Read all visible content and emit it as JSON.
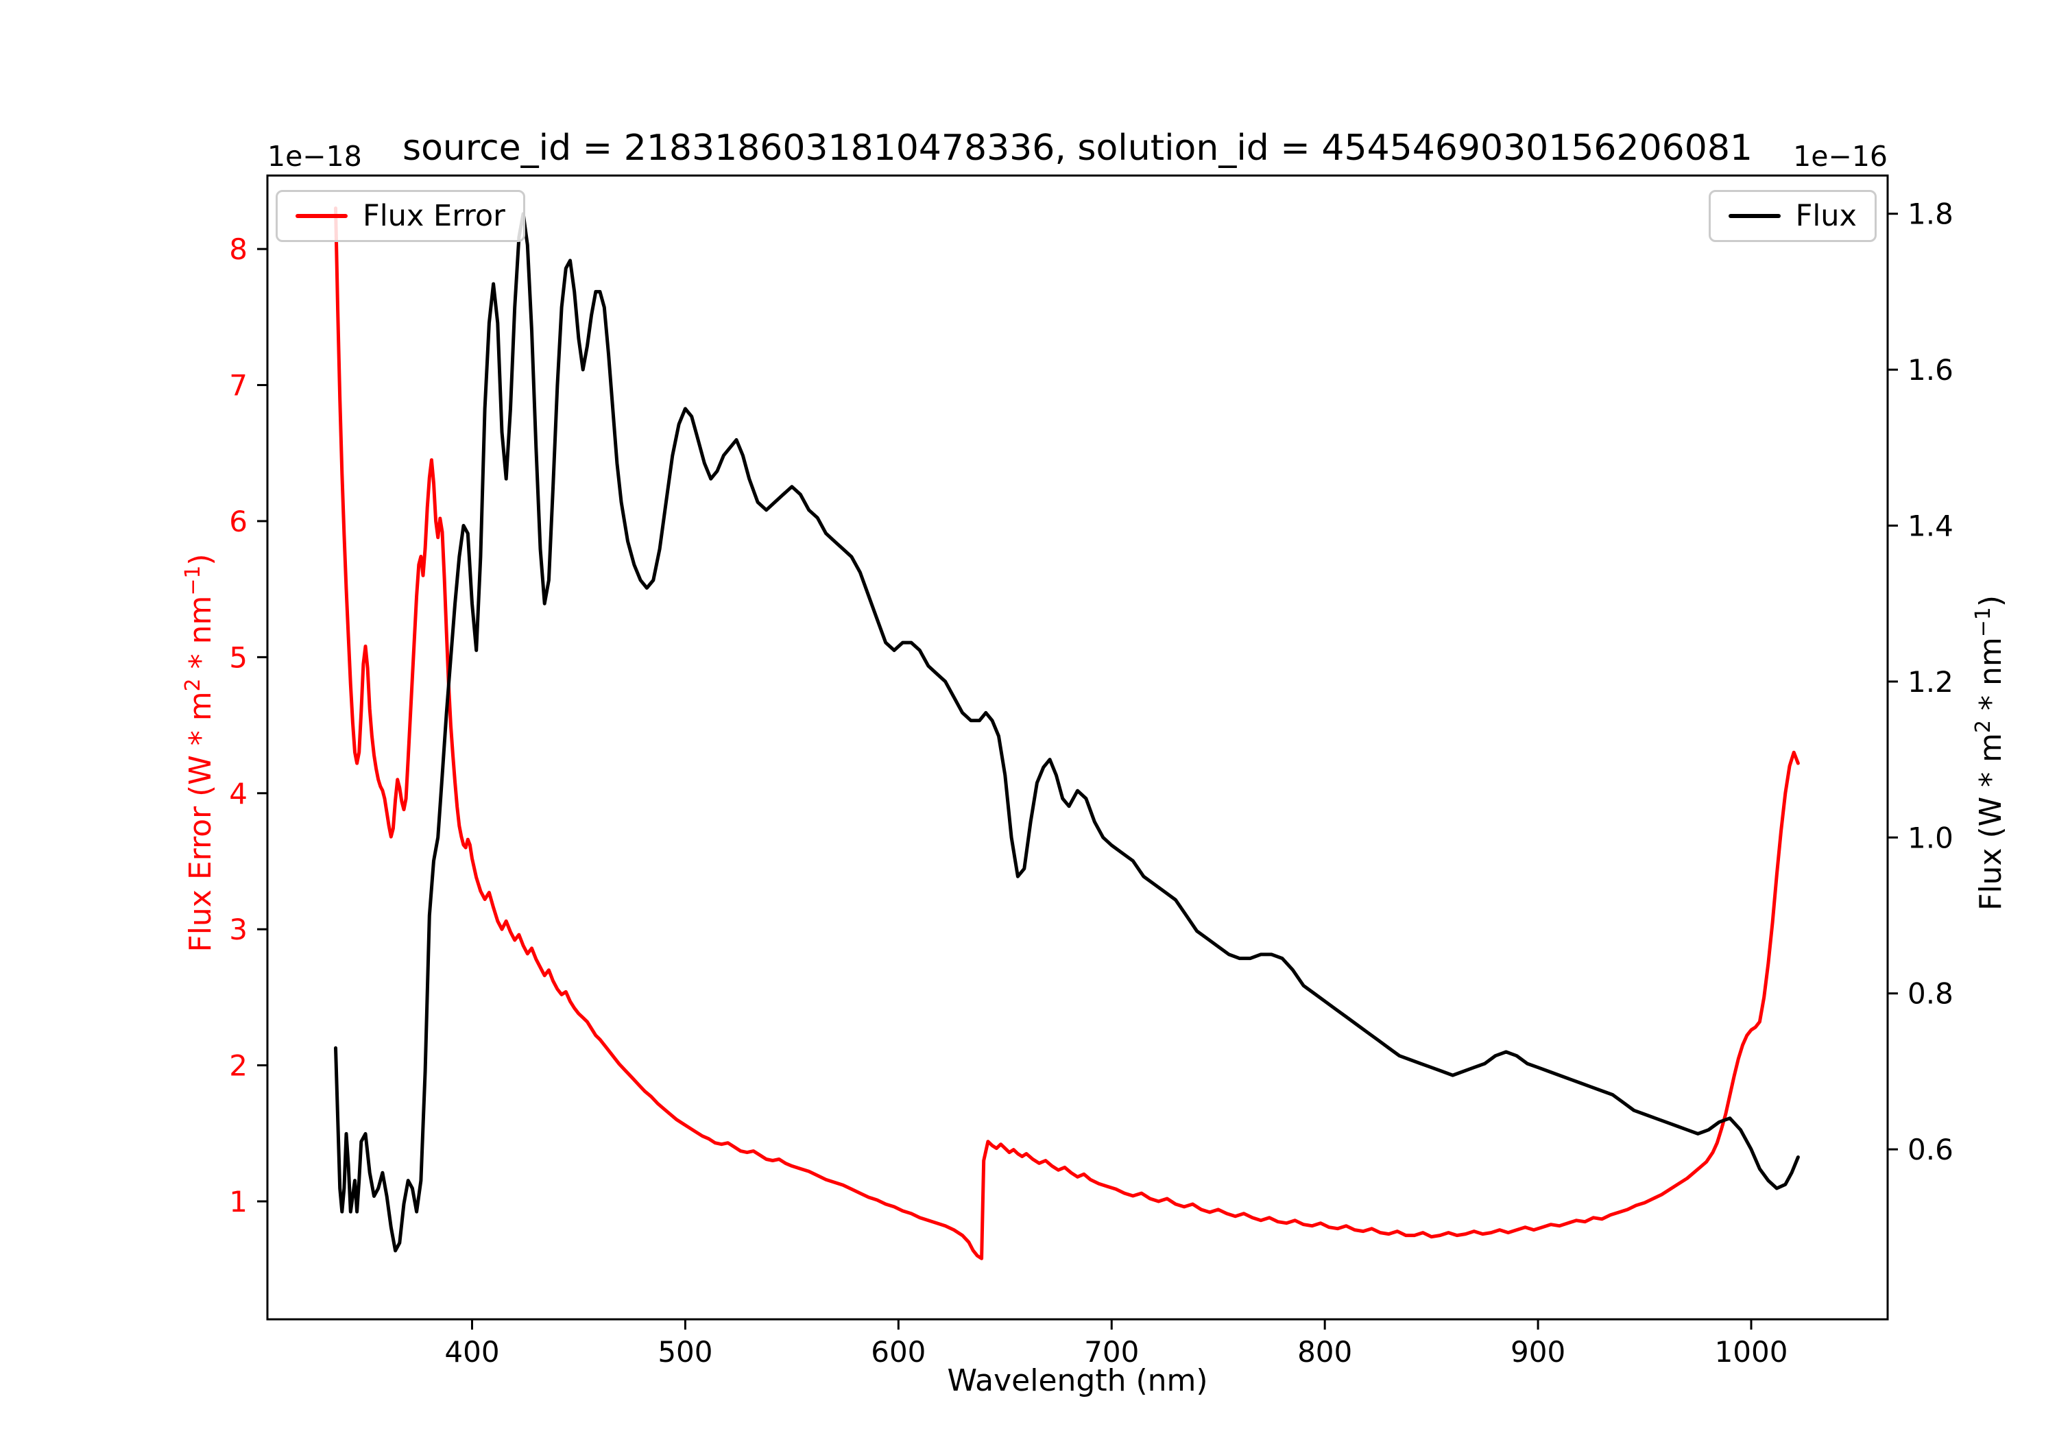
{
  "chart_data": {
    "type": "line",
    "title": "source_id = 2183186031810478336, solution_id = 4545469030156206081",
    "xlabel": "Wavelength (nm)",
    "left_offset_label": "1e−18",
    "right_offset_label": "1e−16",
    "grid": false,
    "x_range": [
      304,
      1064
    ],
    "y_left_range": [
      0.133,
      8.54
    ],
    "y_right_range": [
      0.382,
      1.849
    ],
    "x_tick_values": [
      400,
      500,
      600,
      700,
      800,
      900,
      1000
    ],
    "x_tick_labels": [
      "400",
      "500",
      "600",
      "700",
      "800",
      "900",
      "1000"
    ],
    "y_left_tick_values": [
      1,
      2,
      3,
      4,
      5,
      6,
      7,
      8
    ],
    "y_left_tick_labels": [
      "1",
      "2",
      "3",
      "4",
      "5",
      "6",
      "7",
      "8"
    ],
    "y_right_tick_values": [
      0.6,
      0.8,
      1.0,
      1.2,
      1.4,
      1.6,
      1.8
    ],
    "y_right_tick_labels": [
      "0.6",
      "0.8",
      "1.0",
      "1.2",
      "1.4",
      "1.6",
      "1.8"
    ],
    "axis_color": "#000000",
    "left_tick_label_color": "#ff0000",
    "right_tick_label_color": "#000000",
    "series": [
      {
        "name": "Flux Error",
        "axis": "left",
        "color": "#ff0000",
        "units_scale": "1e-18",
        "x": [
          336,
          337,
          338,
          339,
          340,
          341,
          342,
          343,
          344,
          345,
          346,
          347,
          348,
          349,
          350,
          351,
          352,
          353,
          354,
          355,
          356,
          357,
          358,
          359,
          360,
          361,
          362,
          363,
          364,
          365,
          366,
          367,
          368,
          369,
          370,
          371,
          372,
          373,
          374,
          375,
          376,
          377,
          378,
          379,
          380,
          381,
          382,
          383,
          384,
          385,
          386,
          387,
          388,
          389,
          390,
          391,
          392,
          393,
          394,
          395,
          396,
          397,
          398,
          399,
          400,
          402,
          404,
          406,
          408,
          410,
          412,
          414,
          416,
          418,
          420,
          422,
          424,
          426,
          428,
          430,
          432,
          434,
          436,
          438,
          440,
          442,
          444,
          446,
          448,
          450,
          452,
          454,
          456,
          458,
          460,
          463,
          466,
          469,
          472,
          475,
          478,
          481,
          484,
          487,
          490,
          493,
          496,
          499,
          502,
          505,
          508,
          511,
          514,
          517,
          520,
          523,
          526,
          529,
          532,
          535,
          538,
          541,
          544,
          547,
          550,
          554,
          558,
          562,
          566,
          570,
          574,
          578,
          582,
          586,
          590,
          594,
          598,
          602,
          606,
          610,
          614,
          618,
          622,
          626,
          630,
          633,
          635,
          637,
          639,
          640,
          642,
          644,
          646,
          648,
          650,
          652,
          654,
          656,
          658,
          660,
          663,
          666,
          669,
          672,
          675,
          678,
          681,
          684,
          687,
          690,
          694,
          698,
          702,
          706,
          710,
          714,
          718,
          722,
          726,
          730,
          734,
          738,
          742,
          746,
          750,
          754,
          758,
          762,
          766,
          770,
          774,
          778,
          782,
          786,
          790,
          794,
          798,
          802,
          806,
          810,
          814,
          818,
          822,
          826,
          830,
          834,
          838,
          842,
          846,
          850,
          854,
          858,
          862,
          866,
          870,
          874,
          878,
          882,
          886,
          890,
          894,
          898,
          902,
          906,
          910,
          914,
          918,
          922,
          926,
          930,
          934,
          938,
          942,
          946,
          950,
          954,
          958,
          962,
          966,
          970,
          973,
          976,
          979,
          982,
          984,
          986,
          988,
          990,
          992,
          994,
          996,
          998,
          1000,
          1002,
          1004,
          1006,
          1008,
          1010,
          1012,
          1014,
          1016,
          1018,
          1020,
          1022
        ],
        "y": [
          8.3,
          7.55,
          6.9,
          6.35,
          5.9,
          5.5,
          5.15,
          4.8,
          4.52,
          4.3,
          4.22,
          4.3,
          4.6,
          4.95,
          5.08,
          4.92,
          4.62,
          4.42,
          4.28,
          4.18,
          4.1,
          4.05,
          4.02,
          3.96,
          3.86,
          3.76,
          3.68,
          3.74,
          3.95,
          4.1,
          4.04,
          3.94,
          3.88,
          3.96,
          4.25,
          4.55,
          4.85,
          5.15,
          5.45,
          5.68,
          5.74,
          5.6,
          5.8,
          6.1,
          6.32,
          6.45,
          6.28,
          6.0,
          5.88,
          6.02,
          5.92,
          5.58,
          5.18,
          4.8,
          4.5,
          4.28,
          4.08,
          3.9,
          3.76,
          3.68,
          3.62,
          3.6,
          3.66,
          3.62,
          3.52,
          3.38,
          3.28,
          3.22,
          3.27,
          3.16,
          3.06,
          3.0,
          3.06,
          2.98,
          2.92,
          2.96,
          2.88,
          2.82,
          2.86,
          2.78,
          2.72,
          2.66,
          2.7,
          2.62,
          2.56,
          2.52,
          2.54,
          2.47,
          2.42,
          2.38,
          2.35,
          2.32,
          2.27,
          2.22,
          2.19,
          2.13,
          2.07,
          2.01,
          1.96,
          1.91,
          1.86,
          1.81,
          1.77,
          1.72,
          1.68,
          1.64,
          1.6,
          1.57,
          1.54,
          1.51,
          1.48,
          1.46,
          1.43,
          1.42,
          1.43,
          1.4,
          1.37,
          1.36,
          1.37,
          1.34,
          1.31,
          1.3,
          1.31,
          1.28,
          1.26,
          1.24,
          1.22,
          1.19,
          1.16,
          1.14,
          1.12,
          1.09,
          1.06,
          1.03,
          1.01,
          0.98,
          0.96,
          0.93,
          0.91,
          0.88,
          0.86,
          0.84,
          0.82,
          0.79,
          0.75,
          0.7,
          0.64,
          0.6,
          0.58,
          1.3,
          1.44,
          1.41,
          1.39,
          1.42,
          1.39,
          1.36,
          1.38,
          1.35,
          1.33,
          1.35,
          1.31,
          1.28,
          1.3,
          1.26,
          1.23,
          1.25,
          1.21,
          1.18,
          1.2,
          1.16,
          1.13,
          1.11,
          1.09,
          1.06,
          1.04,
          1.06,
          1.02,
          1.0,
          1.02,
          0.98,
          0.96,
          0.98,
          0.94,
          0.92,
          0.94,
          0.91,
          0.89,
          0.91,
          0.88,
          0.86,
          0.88,
          0.85,
          0.84,
          0.86,
          0.83,
          0.82,
          0.84,
          0.81,
          0.8,
          0.82,
          0.79,
          0.78,
          0.8,
          0.77,
          0.76,
          0.78,
          0.75,
          0.75,
          0.77,
          0.74,
          0.75,
          0.77,
          0.75,
          0.76,
          0.78,
          0.76,
          0.77,
          0.79,
          0.77,
          0.79,
          0.81,
          0.79,
          0.81,
          0.83,
          0.82,
          0.84,
          0.86,
          0.85,
          0.88,
          0.87,
          0.9,
          0.92,
          0.94,
          0.97,
          0.99,
          1.02,
          1.05,
          1.09,
          1.13,
          1.17,
          1.21,
          1.25,
          1.29,
          1.36,
          1.43,
          1.53,
          1.64,
          1.78,
          1.92,
          2.05,
          2.15,
          2.22,
          2.26,
          2.28,
          2.32,
          2.5,
          2.75,
          3.05,
          3.4,
          3.72,
          4.0,
          4.2,
          4.3,
          4.22
        ]
      },
      {
        "name": "Flux",
        "axis": "right",
        "color": "#000000",
        "units_scale": "1e-16",
        "x": [
          336,
          337,
          338,
          339,
          340,
          341,
          342,
          343,
          344,
          345,
          346,
          347,
          348,
          350,
          352,
          354,
          356,
          358,
          360,
          362,
          364,
          366,
          368,
          370,
          372,
          374,
          376,
          378,
          380,
          382,
          384,
          386,
          388,
          390,
          392,
          394,
          396,
          398,
          400,
          402,
          404,
          406,
          408,
          410,
          412,
          414,
          416,
          418,
          420,
          422,
          424,
          426,
          428,
          430,
          432,
          434,
          436,
          438,
          440,
          442,
          444,
          446,
          448,
          450,
          452,
          454,
          456,
          458,
          460,
          462,
          464,
          466,
          468,
          470,
          473,
          476,
          479,
          482,
          485,
          488,
          491,
          494,
          497,
          500,
          503,
          506,
          509,
          512,
          515,
          518,
          521,
          524,
          527,
          530,
          534,
          538,
          542,
          546,
          550,
          554,
          558,
          562,
          566,
          570,
          574,
          578,
          582,
          586,
          590,
          594,
          598,
          602,
          606,
          610,
          614,
          618,
          622,
          626,
          630,
          634,
          638,
          641,
          644,
          647,
          650,
          653,
          656,
          659,
          662,
          665,
          668,
          671,
          674,
          677,
          680,
          684,
          688,
          692,
          696,
          700,
          705,
          710,
          715,
          720,
          725,
          730,
          735,
          740,
          745,
          750,
          755,
          760,
          765,
          770,
          775,
          780,
          785,
          790,
          795,
          800,
          805,
          810,
          815,
          820,
          825,
          830,
          835,
          840,
          845,
          850,
          855,
          860,
          865,
          870,
          875,
          880,
          885,
          890,
          895,
          900,
          905,
          910,
          915,
          920,
          925,
          930,
          935,
          940,
          945,
          950,
          955,
          960,
          965,
          970,
          975,
          980,
          985,
          990,
          995,
          1000,
          1004,
          1008,
          1012,
          1016,
          1019,
          1022
        ],
        "y": [
          0.73,
          0.64,
          0.55,
          0.52,
          0.55,
          0.62,
          0.58,
          0.52,
          0.54,
          0.56,
          0.52,
          0.56,
          0.61,
          0.62,
          0.57,
          0.54,
          0.55,
          0.57,
          0.54,
          0.5,
          0.47,
          0.48,
          0.53,
          0.56,
          0.55,
          0.52,
          0.56,
          0.7,
          0.9,
          0.97,
          1.0,
          1.08,
          1.16,
          1.23,
          1.3,
          1.36,
          1.4,
          1.39,
          1.3,
          1.24,
          1.36,
          1.55,
          1.66,
          1.71,
          1.66,
          1.52,
          1.46,
          1.55,
          1.68,
          1.77,
          1.8,
          1.76,
          1.65,
          1.5,
          1.37,
          1.3,
          1.33,
          1.45,
          1.58,
          1.68,
          1.73,
          1.74,
          1.7,
          1.64,
          1.6,
          1.63,
          1.67,
          1.7,
          1.7,
          1.68,
          1.62,
          1.55,
          1.48,
          1.43,
          1.38,
          1.35,
          1.33,
          1.32,
          1.33,
          1.37,
          1.43,
          1.49,
          1.53,
          1.55,
          1.54,
          1.51,
          1.48,
          1.46,
          1.47,
          1.49,
          1.5,
          1.51,
          1.49,
          1.46,
          1.43,
          1.42,
          1.43,
          1.44,
          1.45,
          1.44,
          1.42,
          1.41,
          1.39,
          1.38,
          1.37,
          1.36,
          1.34,
          1.31,
          1.28,
          1.25,
          1.24,
          1.25,
          1.25,
          1.24,
          1.22,
          1.21,
          1.2,
          1.18,
          1.16,
          1.15,
          1.15,
          1.16,
          1.15,
          1.13,
          1.08,
          1.0,
          0.95,
          0.96,
          1.02,
          1.07,
          1.09,
          1.1,
          1.08,
          1.05,
          1.04,
          1.06,
          1.05,
          1.02,
          1.0,
          0.99,
          0.98,
          0.97,
          0.95,
          0.94,
          0.93,
          0.92,
          0.9,
          0.88,
          0.87,
          0.86,
          0.85,
          0.845,
          0.845,
          0.85,
          0.85,
          0.845,
          0.83,
          0.81,
          0.8,
          0.79,
          0.78,
          0.77,
          0.76,
          0.75,
          0.74,
          0.73,
          0.72,
          0.715,
          0.71,
          0.705,
          0.7,
          0.695,
          0.7,
          0.705,
          0.71,
          0.72,
          0.725,
          0.72,
          0.71,
          0.705,
          0.7,
          0.695,
          0.69,
          0.685,
          0.68,
          0.675,
          0.67,
          0.66,
          0.65,
          0.645,
          0.64,
          0.635,
          0.63,
          0.625,
          0.62,
          0.625,
          0.635,
          0.64,
          0.625,
          0.6,
          0.575,
          0.56,
          0.55,
          0.555,
          0.57,
          0.59
        ]
      }
    ]
  },
  "labels": {
    "left": {
      "pre": "Flux Error (W * m",
      "sup1": "2",
      "mid": " * nm",
      "sup2": "−1",
      "post": ")"
    },
    "right": {
      "pre": "Flux (W * m",
      "sup1": "2",
      "mid": " * nm",
      "sup2": "−1",
      "post": ")"
    }
  },
  "legend": {
    "flux_error_label": "Flux Error",
    "flux_label": "Flux"
  }
}
